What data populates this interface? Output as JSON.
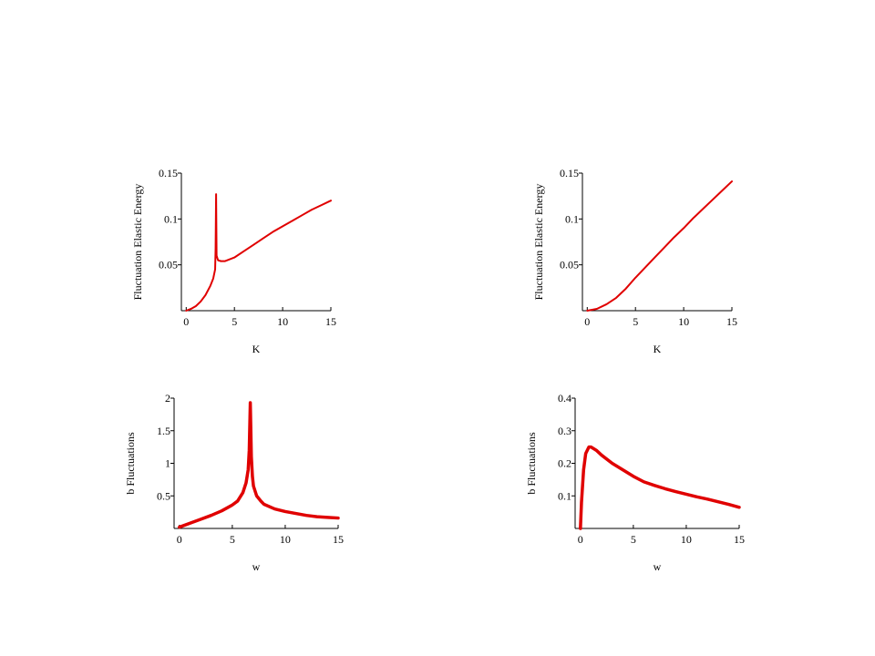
{
  "chart_data": [
    {
      "type": "line",
      "xlabel": "K",
      "ylabel": "Fluctuation Elastic Energy",
      "color": "#e00000",
      "x": [
        0,
        0.5,
        1,
        1.5,
        2,
        2.5,
        2.8,
        3.0,
        3.05,
        3.1,
        3.15,
        3.3,
        3.6,
        4,
        5,
        6,
        7,
        8,
        9,
        10,
        11,
        12,
        13,
        14,
        15
      ],
      "values": [
        0,
        0.002,
        0.005,
        0.01,
        0.017,
        0.027,
        0.035,
        0.045,
        0.068,
        0.127,
        0.06,
        0.055,
        0.054,
        0.054,
        0.058,
        0.065,
        0.072,
        0.079,
        0.086,
        0.092,
        0.098,
        0.104,
        0.11,
        0.115,
        0.12
      ],
      "xlim": [
        -0.5,
        15
      ],
      "ylim": [
        0,
        0.15
      ],
      "xticks": [
        0,
        5,
        10,
        15
      ],
      "yticks": [
        0.05,
        0.1,
        0.15
      ]
    },
    {
      "type": "line",
      "xlabel": "K",
      "ylabel": "Fluctuation Elastic Energy",
      "color": "#e00000",
      "x": [
        0,
        1,
        2,
        3,
        4,
        5,
        6,
        7,
        8,
        9,
        10,
        11,
        12,
        13,
        14,
        15
      ],
      "values": [
        0,
        0.002,
        0.007,
        0.014,
        0.024,
        0.036,
        0.047,
        0.058,
        0.069,
        0.08,
        0.09,
        0.101,
        0.111,
        0.121,
        0.131,
        0.141
      ],
      "xlim": [
        -0.5,
        15
      ],
      "ylim": [
        0,
        0.15
      ],
      "xticks": [
        0,
        5,
        10,
        15
      ],
      "yticks": [
        0.05,
        0.1,
        0.15
      ]
    },
    {
      "type": "line",
      "xlabel": "w",
      "ylabel": "b Fluctuations",
      "color": "#e00000",
      "x": [
        0,
        1,
        2,
        3,
        4,
        5,
        5.5,
        6,
        6.3,
        6.5,
        6.6,
        6.7,
        6.8,
        6.9,
        7,
        7.3,
        7.7,
        8,
        9,
        10,
        11,
        12,
        13,
        14,
        15
      ],
      "values": [
        0.02,
        0.08,
        0.14,
        0.2,
        0.27,
        0.36,
        0.42,
        0.55,
        0.7,
        0.9,
        1.2,
        1.93,
        1.1,
        0.8,
        0.65,
        0.5,
        0.42,
        0.37,
        0.3,
        0.26,
        0.23,
        0.2,
        0.18,
        0.17,
        0.16
      ],
      "xlim": [
        -0.5,
        15
      ],
      "ylim": [
        0,
        2
      ],
      "xticks": [
        0,
        5,
        10,
        15
      ],
      "yticks": [
        0.5,
        1,
        1.5,
        2
      ]
    },
    {
      "type": "line",
      "xlabel": "w",
      "ylabel": "b Fluctuations",
      "color": "#e00000",
      "x": [
        0,
        0.1,
        0.3,
        0.5,
        0.8,
        1,
        1.5,
        2,
        3,
        4,
        5,
        6,
        7,
        8,
        9,
        10,
        11,
        12,
        13,
        14,
        15
      ],
      "values": [
        0,
        0.08,
        0.18,
        0.23,
        0.25,
        0.25,
        0.24,
        0.225,
        0.2,
        0.18,
        0.16,
        0.143,
        0.132,
        0.122,
        0.113,
        0.105,
        0.097,
        0.09,
        0.082,
        0.074,
        0.065
      ],
      "xlim": [
        -0.5,
        15
      ],
      "ylim": [
        0,
        0.4
      ],
      "xticks": [
        0,
        5,
        10,
        15
      ],
      "yticks": [
        0.1,
        0.2,
        0.3,
        0.4
      ]
    }
  ]
}
